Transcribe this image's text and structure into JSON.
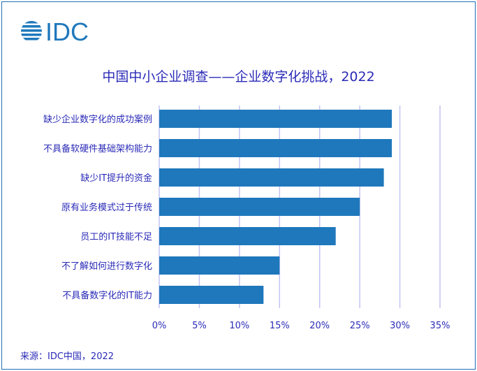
{
  "logo_text": "IDC",
  "chart_data": {
    "type": "bar",
    "orientation": "horizontal",
    "title": "中国中小企业调查——企业数字化挑战，2022",
    "categories": [
      "缺少企业数字化的成功案例",
      "不具备软硬件基础架构能力",
      "缺少IT提升的资金",
      "原有业务模式过于传统",
      "员工的IT技能不足",
      "不了解如何进行数字化",
      "不具备数字化的IT能力"
    ],
    "values": [
      29,
      29,
      28,
      25,
      22,
      15,
      13
    ],
    "unit": "%",
    "xlim": [
      0,
      35
    ],
    "xticks": [
      "0%",
      "5%",
      "10%",
      "15%",
      "20%",
      "25%",
      "30%",
      "35%"
    ],
    "grid": true,
    "bar_color": "#1f78bc",
    "grid_color": "#c4c4f4"
  },
  "source": "来源：IDC中国，2022"
}
